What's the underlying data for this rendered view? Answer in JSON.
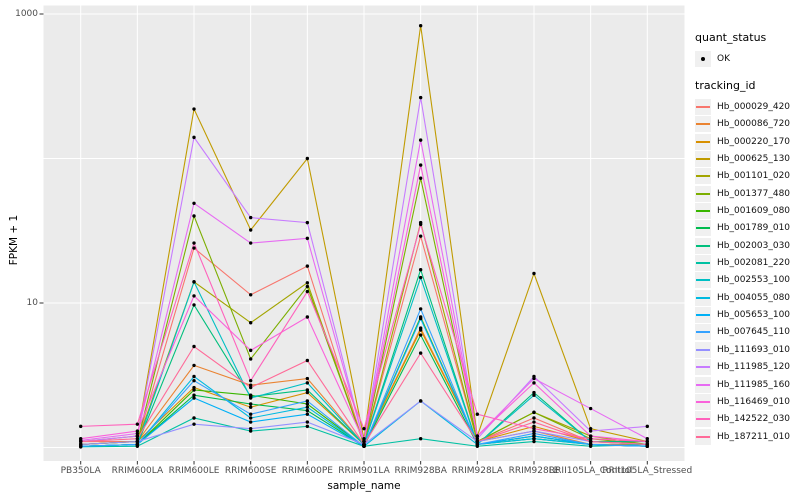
{
  "figure": {
    "background": "#ffffff",
    "panel_bg": "#ebebeb",
    "grid_color": "#ffffff",
    "tick_mark_color": "#333333",
    "tick_label_color": "#4d4d4d",
    "point_color": "#000000"
  },
  "chart_data": {
    "type": "line",
    "title": "",
    "xlabel": "sample_name",
    "ylabel": "FPKM + 1",
    "y_scale": "log10",
    "ylim": [
      0.81,
      1150
    ],
    "grid": true,
    "legend_position": "right",
    "y_axis_ticks": [
      {
        "label": "1000",
        "value": 1000
      },
      {
        "label": "10",
        "value": 10
      }
    ],
    "y_gridline_values": [
      1,
      10,
      100,
      1000
    ],
    "legend": {
      "quant_title": "quant_status",
      "quant_item": "OK",
      "tracking_title": "tracking_id"
    },
    "categories": [
      "PB350LA",
      "RRIM600LA",
      "RRIM600LE",
      "RRIM600SE",
      "RRIM600PE",
      "RRIM901LA",
      "RRIM928BA",
      "RRIM928LA",
      "RRIM928LE",
      "RRII105LA_Control",
      "RRII105LA_Stressed"
    ],
    "series": [
      {
        "name": "Hb_000029_420",
        "color": "#F8766D",
        "values": [
          1.1,
          1.1,
          24,
          11.4,
          18,
          1.05,
          29,
          1.1,
          1.6,
          1.1,
          1.05
        ]
      },
      {
        "name": "Hb_000086_720",
        "color": "#EA8331",
        "values": [
          1.05,
          1.1,
          3.7,
          2.7,
          3.0,
          1.05,
          6.7,
          1.1,
          1.3,
          1.05,
          1.05
        ]
      },
      {
        "name": "Hb_000220_170",
        "color": "#D89000",
        "values": [
          1.05,
          1.1,
          2.6,
          1.9,
          2.4,
          1.05,
          6.5,
          1.1,
          1.4,
          1.1,
          1.05
        ]
      },
      {
        "name": "Hb_000625_130",
        "color": "#C09B00",
        "values": [
          1.1,
          1.2,
          220,
          32,
          100,
          1.15,
          830,
          1.2,
          16,
          1.35,
          1.1
        ]
      },
      {
        "name": "Hb_001101_020",
        "color": "#A3A500",
        "values": [
          1.05,
          1.1,
          14,
          7.3,
          13.8,
          1.05,
          36,
          1.1,
          1.75,
          1.2,
          1.05
        ]
      },
      {
        "name": "Hb_001377_480",
        "color": "#7CAE00",
        "values": [
          1.05,
          1.1,
          40,
          4.1,
          13,
          1.05,
          73,
          1.1,
          1.75,
          1.15,
          1.05
        ]
      },
      {
        "name": "Hb_001609_080",
        "color": "#39B600",
        "values": [
          1.02,
          1.05,
          2.5,
          2.3,
          2.0,
          1.02,
          8.0,
          1.05,
          1.2,
          1.05,
          1.02
        ]
      },
      {
        "name": "Hb_001789_010",
        "color": "#00BB4E",
        "values": [
          1.02,
          1.05,
          2.3,
          2.0,
          1.8,
          1.02,
          6.0,
          1.05,
          1.15,
          1.05,
          1.02
        ]
      },
      {
        "name": "Hb_002003_030",
        "color": "#00BF7D",
        "values": [
          1.02,
          1.05,
          9.7,
          2.25,
          2.5,
          1.05,
          17,
          1.05,
          2.4,
          1.1,
          1.1
        ]
      },
      {
        "name": "Hb_002081_220",
        "color": "#00C1A3",
        "values": [
          1.01,
          1.02,
          1.6,
          1.3,
          1.4,
          1.02,
          1.15,
          1.02,
          1.1,
          1.02,
          1.05
        ]
      },
      {
        "name": "Hb_002553_100",
        "color": "#00BFC4",
        "values": [
          1.02,
          1.05,
          14,
          2.2,
          2.8,
          1.05,
          15,
          1.05,
          2.3,
          1.1,
          1.05
        ]
      },
      {
        "name": "Hb_004055_080",
        "color": "#00BAE0",
        "values": [
          1.02,
          1.05,
          3.1,
          1.6,
          1.9,
          1.02,
          2.1,
          1.05,
          1.15,
          1.05,
          1.02
        ]
      },
      {
        "name": "Hb_005653_100",
        "color": "#00B0F6",
        "values": [
          1.02,
          1.05,
          2.2,
          1.5,
          1.7,
          1.02,
          7.8,
          1.05,
          1.2,
          1.05,
          1.02
        ]
      },
      {
        "name": "Hb_007645_110",
        "color": "#35A2FF",
        "values": [
          1.02,
          1.05,
          2.9,
          1.7,
          2.1,
          1.02,
          9.1,
          1.05,
          1.25,
          1.05,
          1.02
        ]
      },
      {
        "name": "Hb_111693_010",
        "color": "#9590FF",
        "values": [
          1.05,
          1.1,
          1.45,
          1.35,
          1.5,
          1.05,
          2.1,
          1.1,
          1.3,
          1.1,
          1.05
        ]
      },
      {
        "name": "Hb_111985_120",
        "color": "#C77CFF",
        "values": [
          1.1,
          1.2,
          140,
          39,
          36,
          1.1,
          264,
          1.15,
          3.1,
          1.3,
          1.4
        ]
      },
      {
        "name": "Hb_111985_160",
        "color": "#E76BF3",
        "values": [
          1.12,
          1.25,
          49,
          26,
          28,
          1.1,
          134,
          1.2,
          3.0,
          1.86,
          1.15
        ]
      },
      {
        "name": "Hb_116469_010",
        "color": "#FA62DB",
        "values": [
          1.15,
          1.3,
          11.2,
          4.7,
          8.0,
          1.1,
          90,
          1.2,
          2.8,
          1.2,
          1.1
        ]
      },
      {
        "name": "Hb_142522_030",
        "color": "#FF62BC",
        "values": [
          1.4,
          1.45,
          26,
          2.9,
          12,
          1.35,
          35,
          1.7,
          1.35,
          1.15,
          1.1
        ]
      },
      {
        "name": "Hb_187211_010",
        "color": "#FF6A98",
        "values": [
          1.1,
          1.15,
          5.0,
          2.6,
          4.0,
          1.05,
          4.5,
          1.1,
          1.5,
          1.1,
          1.05
        ]
      }
    ]
  }
}
